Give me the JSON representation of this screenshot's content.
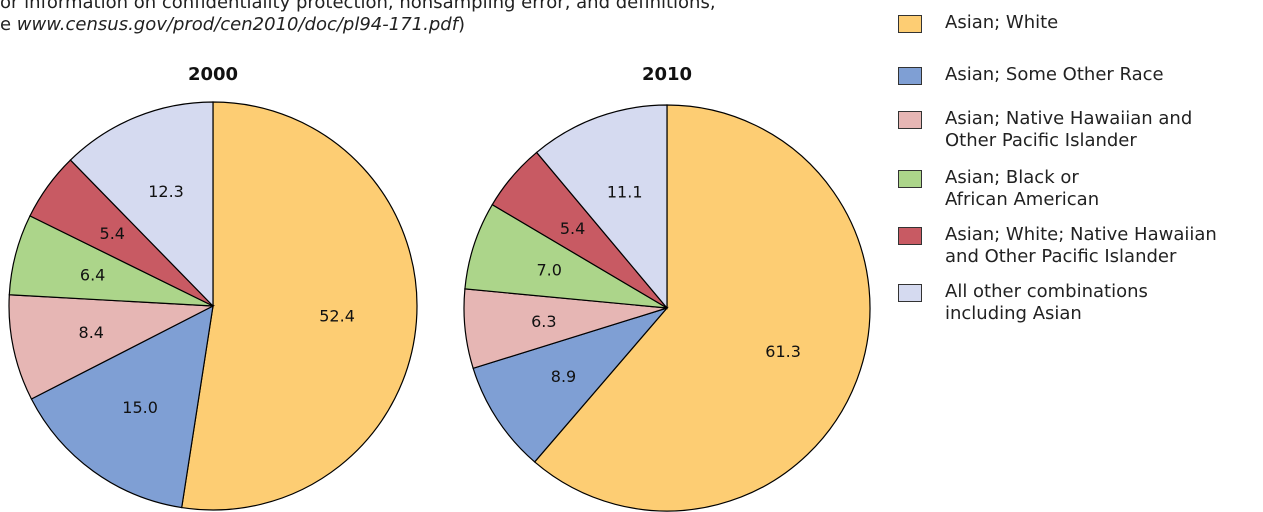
{
  "notes": {
    "line1": "or information on confidentiality protection, nonsampling error, and definitions,",
    "line2_start": "e ",
    "line2_url": "www.census.gov/prod/cen2010/doc/pl94-171.pdf",
    "line2_end": ")"
  },
  "chart_data": [
    {
      "type": "pie",
      "title": "2000",
      "categories": [
        "Asian; White",
        "Asian; Some Other Race",
        "Asian; Native Hawaiian and\nOther Pacific Islander",
        "Asian; Black or\nAfrican American",
        "Asian; White; Native Hawaiian\nand Other Pacific Islander",
        "All other combinations\nincluding Asian"
      ],
      "values": [
        52.4,
        15.0,
        8.4,
        6.4,
        5.4,
        12.3
      ],
      "value_labels": [
        "52.4",
        "15.0",
        "8.4",
        "6.4",
        "5.4",
        "12.3"
      ],
      "colors": [
        "#fdcd73",
        "#7f9fd4",
        "#e6b6b4",
        "#acd58a",
        "#c85a63",
        "#d5daf0"
      ]
    },
    {
      "type": "pie",
      "title": "2010",
      "categories": [
        "Asian; White",
        "Asian; Some Other Race",
        "Asian; Native Hawaiian and\nOther Pacific Islander",
        "Asian; Black or\nAfrican American",
        "Asian; White; Native Hawaiian\nand Other Pacific Islander",
        "All other combinations\nincluding Asian"
      ],
      "values": [
        61.3,
        8.9,
        6.3,
        7.0,
        5.4,
        11.1
      ],
      "value_labels": [
        "61.3",
        "8.9",
        "6.3",
        "7.0",
        "5.4",
        "11.1"
      ],
      "colors": [
        "#fdcd73",
        "#7f9fd4",
        "#e6b6b4",
        "#acd58a",
        "#c85a63",
        "#d5daf0"
      ]
    }
  ]
}
